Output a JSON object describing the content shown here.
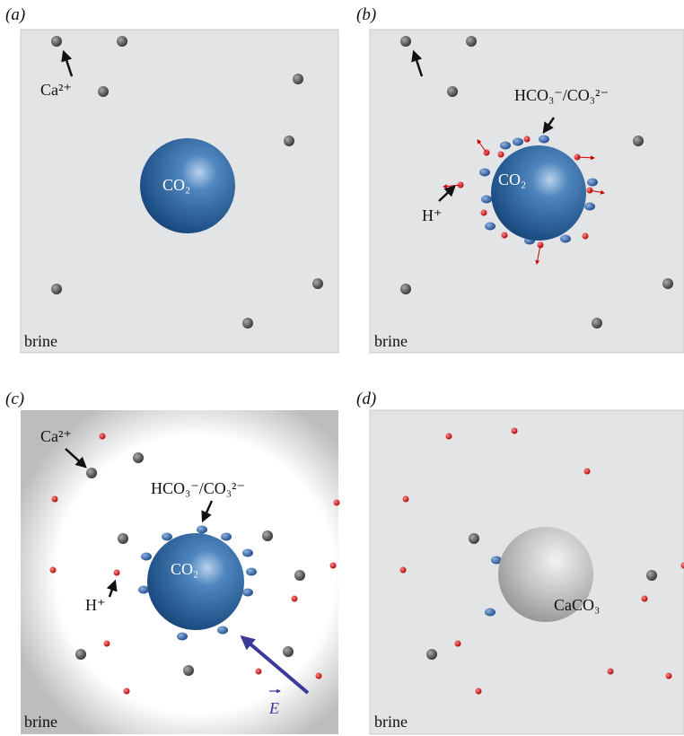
{
  "panels": [
    {
      "label": "(a)",
      "calcium": "Ca²⁺",
      "bubble": "CO₂",
      "medium": "brine"
    },
    {
      "label": "(b)",
      "ion": "HCO₃⁻/CO₃²⁻",
      "bubble": "CO₂",
      "proton": "H⁺",
      "medium": "brine"
    },
    {
      "label": "(c)",
      "calcium": "Ca²⁺",
      "ion": "HCO₃⁻/CO₃²⁻",
      "bubble": "CO₂",
      "proton": "H⁺",
      "field": "E",
      "medium": "brine"
    },
    {
      "label": "(d)",
      "precipitate": "CaCO₃",
      "medium": "brine"
    }
  ]
}
